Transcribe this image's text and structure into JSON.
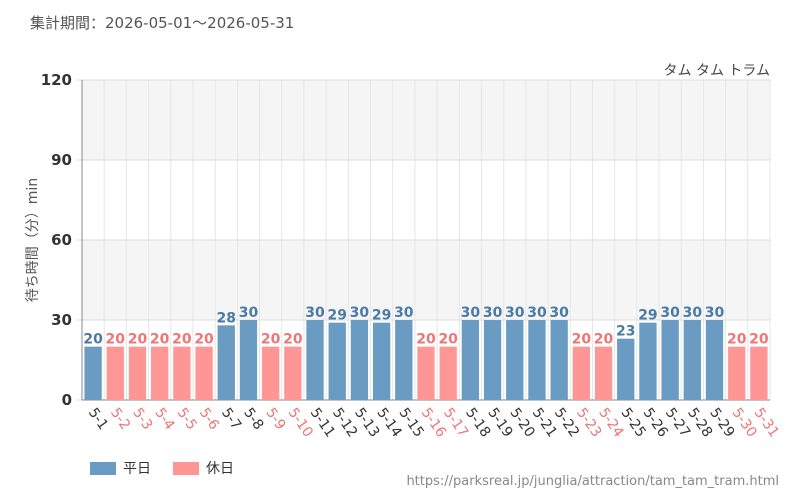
{
  "header": {
    "period_label": "集計期間：2026-05-01～2026-05-31",
    "attraction_name": "タム タム トラム"
  },
  "source_url": "https://parksreal.jp/junglia/attraction/tam_tam_tram.html",
  "colors": {
    "weekday": "#6a9bc3",
    "holiday": "#ff9696",
    "weekday_text": "#4a7ba6",
    "holiday_text": "#f07575",
    "band": "#f5f5f5",
    "grid": "#dddddd"
  },
  "chart_data": {
    "type": "bar",
    "ylabel": "待ち時間（分）min",
    "ylim": [
      0,
      120
    ],
    "yticks": [
      0,
      30,
      60,
      90,
      120
    ],
    "categories": [
      "5-1",
      "5-2",
      "5-3",
      "5-4",
      "5-5",
      "5-6",
      "5-7",
      "5-8",
      "5-9",
      "5-10",
      "5-11",
      "5-12",
      "5-13",
      "5-14",
      "5-15",
      "5-16",
      "5-17",
      "5-18",
      "5-19",
      "5-20",
      "5-21",
      "5-22",
      "5-23",
      "5-24",
      "5-25",
      "5-26",
      "5-27",
      "5-28",
      "5-29",
      "5-30",
      "5-31"
    ],
    "values": [
      20,
      20,
      20,
      20,
      20,
      20,
      28,
      30,
      20,
      20,
      30,
      29,
      30,
      29,
      30,
      20,
      20,
      30,
      30,
      30,
      30,
      30,
      20,
      20,
      23,
      29,
      30,
      30,
      30,
      20,
      20
    ],
    "day_types": [
      "weekday",
      "holiday",
      "holiday",
      "holiday",
      "holiday",
      "holiday",
      "weekday",
      "weekday",
      "holiday",
      "holiday",
      "weekday",
      "weekday",
      "weekday",
      "weekday",
      "weekday",
      "holiday",
      "holiday",
      "weekday",
      "weekday",
      "weekday",
      "weekday",
      "weekday",
      "holiday",
      "holiday",
      "weekday",
      "weekday",
      "weekday",
      "weekday",
      "weekday",
      "holiday",
      "holiday"
    ],
    "legend": [
      {
        "key": "weekday",
        "label": "平日"
      },
      {
        "key": "holiday",
        "label": "休日"
      }
    ],
    "legend_position": "bottom-left",
    "grid": true
  }
}
